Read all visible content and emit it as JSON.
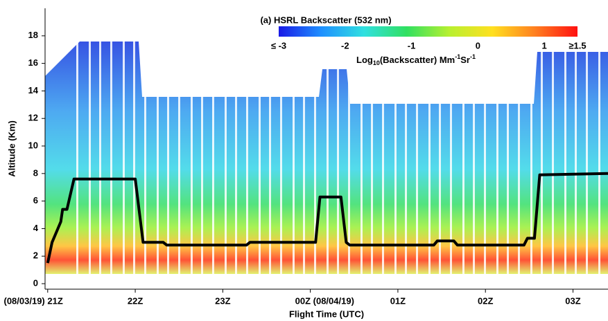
{
  "chart_data": {
    "type": "line",
    "title": "(a) HSRL Backscatter (532 nm)",
    "x_label": "Flight Time (UTC)",
    "y_label": "Altitude (Km)",
    "x": [
      21.0,
      21.05,
      21.15,
      21.17,
      21.22,
      21.3,
      22.0,
      22.09,
      22.32,
      22.36,
      23.27,
      23.31,
      24.06,
      24.11,
      24.35,
      24.41,
      24.45,
      25.41,
      25.45,
      25.64,
      25.68,
      26.44,
      26.48,
      26.56,
      26.62,
      27.4
    ],
    "series": [
      {
        "color": "#000000",
        "values": [
          1.5,
          3.0,
          4.5,
          5.4,
          5.4,
          7.6,
          7.6,
          3.0,
          3.0,
          2.8,
          2.8,
          3.0,
          3.0,
          6.3,
          6.3,
          3.0,
          2.8,
          2.8,
          3.1,
          3.1,
          2.8,
          2.8,
          3.3,
          3.3,
          7.9,
          8.0
        ]
      }
    ],
    "xlim": [
      20.97,
      27.4
    ],
    "xticks": [
      {
        "value": 21,
        "label": "(08/03/19) 21Z"
      },
      {
        "value": 22,
        "label": "22Z"
      },
      {
        "value": 23,
        "label": "23Z"
      },
      {
        "value": 24,
        "label": "00Z (08/04/19)"
      },
      {
        "value": 25,
        "label": "01Z"
      },
      {
        "value": 26,
        "label": "02Z"
      },
      {
        "value": 27,
        "label": "03Z"
      }
    ],
    "ylim": [
      -0.4,
      20
    ],
    "yticks": [
      0,
      2,
      4,
      6,
      8,
      10,
      12,
      14,
      16,
      18
    ],
    "colorbar": {
      "label": [
        "Log",
        "10",
        "(Backscatter) Mm",
        "-1",
        "Sr",
        "-1"
      ],
      "lim": [
        -3,
        1.5
      ],
      "ticks": [
        {
          "value": -3,
          "label": "≤ -3"
        },
        -2,
        -1,
        0,
        1,
        {
          "value": 1.5,
          "label": "≥1.5"
        }
      ],
      "colors": [
        "#1a1ae6",
        "#1e90ff",
        "#30e0e0",
        "#30e060",
        "#b8f030",
        "#ffe020",
        "#ff8020",
        "#ff1010"
      ]
    }
  }
}
